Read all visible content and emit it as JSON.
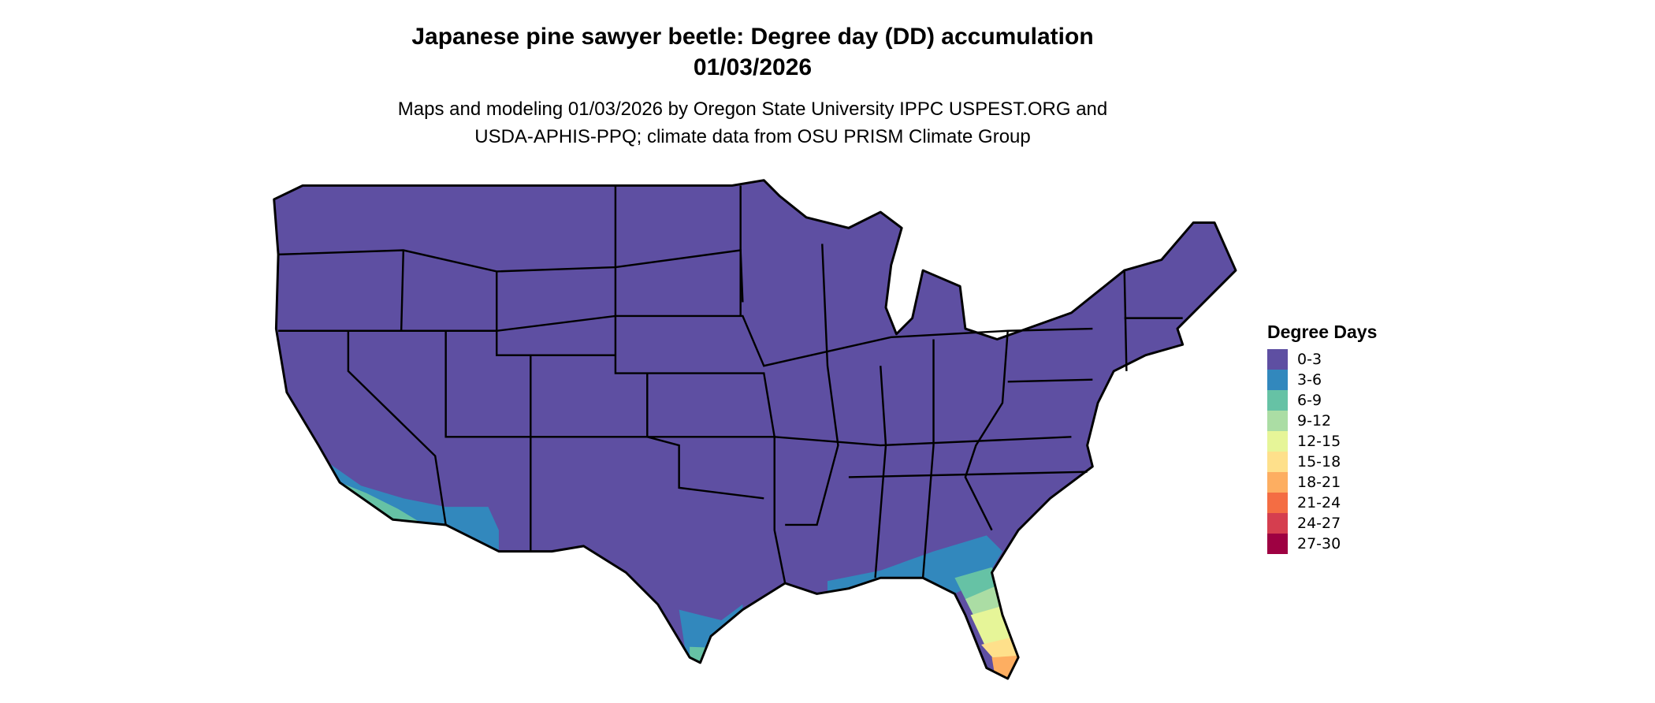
{
  "title_line1": "Japanese pine sawyer beetle: Degree day (DD) accumulation",
  "title_line2": "01/03/2026",
  "subtitle_line1": "Maps and modeling 01/03/2026 by Oregon State University IPPC USPEST.ORG and",
  "subtitle_line2": "USDA-APHIS-PPQ; climate data from OSU PRISM Climate Group",
  "chart_data": {
    "type": "map",
    "region": "Contiguous United States",
    "legend": {
      "title": "Degree Days",
      "placement": "right",
      "items": [
        {
          "label": "0-3",
          "color": "#5E4FA2"
        },
        {
          "label": "3-6",
          "color": "#3288BD"
        },
        {
          "label": "6-9",
          "color": "#66C2A5"
        },
        {
          "label": "9-12",
          "color": "#ABDDA4"
        },
        {
          "label": "12-15",
          "color": "#E6F598"
        },
        {
          "label": "15-18",
          "color": "#FEE08B"
        },
        {
          "label": "18-21",
          "color": "#FDAE61"
        },
        {
          "label": "21-24",
          "color": "#F46D43"
        },
        {
          "label": "24-27",
          "color": "#D53E4F"
        },
        {
          "label": "27-30",
          "color": "#9E0142"
        }
      ]
    }
  }
}
